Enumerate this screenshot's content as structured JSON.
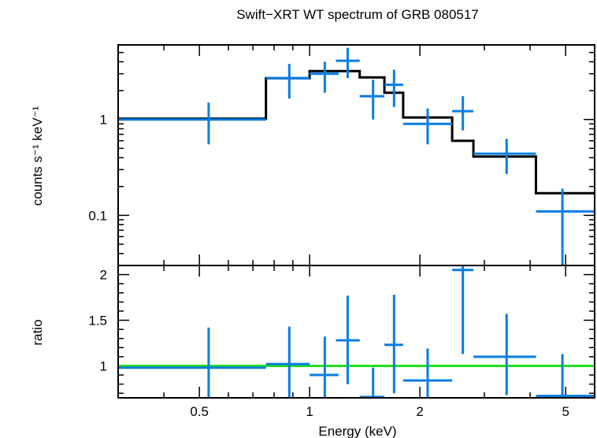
{
  "chart_data": [
    {
      "type": "scatter",
      "panel": "spectrum",
      "title": "Swift−XRT WT spectrum of GRB 080517",
      "xlabel": "Energy (keV)",
      "ylabel": "counts s⁻¹ keV⁻¹",
      "xscale": "log",
      "yscale": "log",
      "xlim": [
        0.3,
        6.0
      ],
      "ylim": [
        0.03,
        6.0
      ],
      "yticks": [
        {
          "value": 0.1,
          "label": "0.1"
        },
        {
          "value": 1,
          "label": "1"
        }
      ],
      "data": [
        {
          "x": 0.53,
          "xlo": 0.3,
          "xhi": 0.76,
          "y": 1.0,
          "ylo": 0.55,
          "yhi": 1.5
        },
        {
          "x": 0.88,
          "xlo": 0.76,
          "xhi": 1.0,
          "y": 2.7,
          "ylo": 1.65,
          "yhi": 3.8
        },
        {
          "x": 1.1,
          "xlo": 1.0,
          "xhi": 1.2,
          "y": 3.0,
          "ylo": 1.9,
          "yhi": 4.0
        },
        {
          "x": 1.27,
          "xlo": 1.18,
          "xhi": 1.37,
          "y": 4.1,
          "ylo": 2.7,
          "yhi": 5.6
        },
        {
          "x": 1.49,
          "xlo": 1.37,
          "xhi": 1.6,
          "y": 1.75,
          "ylo": 1.0,
          "yhi": 2.6
        },
        {
          "x": 1.7,
          "xlo": 1.6,
          "xhi": 1.8,
          "y": 2.3,
          "ylo": 1.35,
          "yhi": 3.3
        },
        {
          "x": 2.1,
          "xlo": 1.8,
          "xhi": 2.45,
          "y": 0.9,
          "ylo": 0.55,
          "yhi": 1.3
        },
        {
          "x": 2.62,
          "xlo": 2.45,
          "xhi": 2.8,
          "y": 1.22,
          "ylo": 0.77,
          "yhi": 1.75
        },
        {
          "x": 3.45,
          "xlo": 2.8,
          "xhi": 4.15,
          "y": 0.44,
          "ylo": 0.27,
          "yhi": 0.63
        },
        {
          "x": 4.9,
          "xlo": 4.15,
          "xhi": 6.0,
          "y": 0.11,
          "ylo": 0.03,
          "yhi": 0.19
        }
      ],
      "model_steps": [
        {
          "xlo": 0.3,
          "xhi": 0.76,
          "y": 1.02
        },
        {
          "xlo": 0.76,
          "xhi": 1.0,
          "y": 2.7
        },
        {
          "xlo": 1.0,
          "xhi": 1.37,
          "y": 3.2
        },
        {
          "xlo": 1.37,
          "xhi": 1.6,
          "y": 2.75
        },
        {
          "xlo": 1.6,
          "xhi": 1.8,
          "y": 1.9
        },
        {
          "xlo": 1.8,
          "xhi": 2.45,
          "y": 1.05
        },
        {
          "xlo": 2.45,
          "xhi": 2.8,
          "y": 0.6
        },
        {
          "xlo": 2.8,
          "xhi": 4.15,
          "y": 0.41
        },
        {
          "xlo": 4.15,
          "xhi": 6.0,
          "y": 0.17
        }
      ]
    },
    {
      "type": "scatter",
      "panel": "ratio",
      "xlabel": "Energy (keV)",
      "ylabel": "ratio",
      "xscale": "log",
      "yscale": "linear",
      "xlim": [
        0.3,
        6.0
      ],
      "ylim": [
        0.65,
        2.1
      ],
      "xticks": [
        {
          "value": 0.5,
          "label": "0.5"
        },
        {
          "value": 1,
          "label": "1"
        },
        {
          "value": 2,
          "label": "2"
        },
        {
          "value": 5,
          "label": "5"
        }
      ],
      "yticks": [
        {
          "value": 1,
          "label": "1"
        },
        {
          "value": 1.5,
          "label": "1.5"
        },
        {
          "value": 2,
          "label": "2"
        }
      ],
      "reference_line": 1.0,
      "data": [
        {
          "x": 0.53,
          "xlo": 0.3,
          "xhi": 0.76,
          "y": 0.98,
          "ylo": 0.57,
          "yhi": 1.42
        },
        {
          "x": 0.88,
          "xlo": 0.76,
          "xhi": 1.0,
          "y": 1.02,
          "ylo": 0.65,
          "yhi": 1.43
        },
        {
          "x": 1.1,
          "xlo": 1.0,
          "xhi": 1.2,
          "y": 0.9,
          "ylo": 0.6,
          "yhi": 1.32
        },
        {
          "x": 1.27,
          "xlo": 1.18,
          "xhi": 1.37,
          "y": 1.28,
          "ylo": 0.8,
          "yhi": 1.77
        },
        {
          "x": 1.49,
          "xlo": 1.37,
          "xhi": 1.6,
          "y": 0.66,
          "ylo": 0.4,
          "yhi": 0.98
        },
        {
          "x": 1.7,
          "xlo": 1.6,
          "xhi": 1.8,
          "y": 1.23,
          "ylo": 0.7,
          "yhi": 1.78
        },
        {
          "x": 2.1,
          "xlo": 1.8,
          "xhi": 2.45,
          "y": 0.84,
          "ylo": 0.5,
          "yhi": 1.19
        },
        {
          "x": 2.62,
          "xlo": 2.45,
          "xhi": 2.8,
          "y": 2.05,
          "ylo": 1.13,
          "yhi": 2.2
        },
        {
          "x": 3.45,
          "xlo": 2.8,
          "xhi": 4.15,
          "y": 1.1,
          "ylo": 0.68,
          "yhi": 1.57
        },
        {
          "x": 4.9,
          "xlo": 4.15,
          "xhi": 6.0,
          "y": 0.67,
          "ylo": 0.2,
          "yhi": 1.13
        }
      ]
    }
  ],
  "colors": {
    "data": "#0a7de3",
    "model": "#000000",
    "reference": "#22e01c",
    "axis": "#000000"
  }
}
